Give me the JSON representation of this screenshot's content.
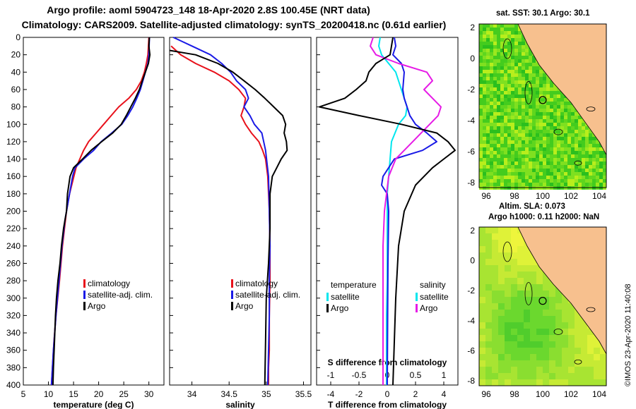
{
  "title": {
    "line1": "Argo profile: aoml 5904723_148 18-Apr-2020 2.8S 100.45E (NRT data)",
    "line2": "Climatology: CARS2009. Satellite-adjusted climatology: synTS_20200418.nc (0.61d earlier)"
  },
  "colors": {
    "climatology": "#e8111b",
    "satellite": "#1a1ae6",
    "argo": "#000000",
    "t_satellite": "#00e6ee",
    "s_satellite": "#1a1ae6",
    "argo_s": "#e61be6",
    "argo_t": "#000000",
    "land": "#f7c08e"
  },
  "chart_data": [
    {
      "type": "line",
      "id": "temperature",
      "xlabel": "temperature (deg C)",
      "ylabel": "",
      "xlim": [
        5,
        33
      ],
      "ylim": [
        400,
        0
      ],
      "xticks": [
        5,
        10,
        15,
        20,
        25,
        30
      ],
      "yticks": [
        0,
        20,
        40,
        60,
        80,
        100,
        120,
        140,
        160,
        180,
        200,
        220,
        240,
        260,
        280,
        300,
        320,
        340,
        360,
        380,
        400
      ],
      "legend": [
        "climatology",
        "satellite-adj. clim.",
        "Argo"
      ],
      "series": [
        {
          "name": "climatology",
          "color_key": "climatology",
          "x": [
            30.0,
            29.9,
            29.8,
            29.5,
            29.1,
            28.5,
            27.5,
            26.0,
            24.0,
            22.5,
            21.0,
            19.5,
            18.0,
            17.0,
            15.5,
            14.2,
            13.6,
            12.8,
            12.2,
            11.5,
            11.1,
            10.8,
            10.6
          ],
          "y": [
            0,
            10,
            20,
            30,
            40,
            50,
            60,
            70,
            80,
            90,
            100,
            110,
            120,
            130,
            150,
            180,
            200,
            240,
            280,
            320,
            350,
            380,
            400
          ]
        },
        {
          "name": "satellite-adj. clim.",
          "color_key": "satellite",
          "x": [
            30.1,
            30.0,
            29.8,
            29.3,
            28.8,
            28.3,
            27.6,
            26.8,
            25.8,
            24.6,
            22.6,
            20.5,
            19.0,
            17.0,
            15.3,
            14.8,
            14.2,
            13.3,
            12.7,
            12.1,
            11.5,
            11.0,
            10.7,
            10.6
          ],
          "y": [
            0,
            20,
            30,
            40,
            50,
            60,
            70,
            80,
            90,
            100,
            110,
            120,
            130,
            140,
            150,
            160,
            180,
            210,
            240,
            280,
            320,
            360,
            390,
            400
          ]
        },
        {
          "name": "Argo",
          "color_key": "argo",
          "x": [
            30.1,
            30.0,
            30.2,
            29.9,
            29.3,
            28.7,
            28.1,
            27.3,
            26.4,
            25.5,
            24.5,
            22.8,
            20.6,
            18.5,
            16.8,
            15.0,
            14.3,
            13.8,
            13.6,
            13.0,
            12.6,
            12.3,
            11.9,
            11.6,
            11.4,
            11.2,
            11.0,
            10.9
          ],
          "y": [
            0,
            10,
            20,
            30,
            40,
            50,
            60,
            70,
            80,
            90,
            100,
            110,
            120,
            130,
            140,
            150,
            160,
            180,
            200,
            220,
            240,
            260,
            280,
            300,
            320,
            350,
            380,
            400
          ]
        }
      ]
    },
    {
      "type": "line",
      "id": "salinity",
      "xlabel": "salinity",
      "xlim": [
        33.7,
        35.6
      ],
      "ylim": [
        400,
        0
      ],
      "xticks": [
        34,
        34.5,
        35,
        35.5
      ],
      "legend": [
        "climatology",
        "satellite-adj. clim.",
        "Argo"
      ],
      "series": [
        {
          "name": "climatology",
          "color_key": "climatology",
          "x": [
            33.72,
            33.85,
            34.05,
            34.3,
            34.5,
            34.63,
            34.72,
            34.7,
            34.66,
            34.72,
            34.8,
            34.9,
            34.95,
            34.99,
            35.02,
            35.04,
            35.05,
            35.05,
            35.04,
            35.04,
            35.03,
            35.03
          ],
          "y": [
            10,
            20,
            30,
            40,
            50,
            60,
            70,
            80,
            90,
            100,
            110,
            120,
            130,
            140,
            160,
            200,
            240,
            280,
            320,
            360,
            380,
            400
          ]
        },
        {
          "name": "satellite-adj. clim.",
          "color_key": "satellite",
          "x": [
            33.75,
            34.0,
            34.25,
            34.4,
            34.52,
            34.6,
            34.72,
            34.76,
            34.7,
            34.78,
            34.84,
            34.94,
            34.99,
            35.03,
            35.04,
            35.05,
            35.04,
            35.04,
            35.03,
            35.02
          ],
          "y": [
            0,
            10,
            20,
            30,
            40,
            50,
            60,
            70,
            80,
            90,
            100,
            110,
            130,
            160,
            200,
            240,
            280,
            320,
            360,
            400
          ]
        },
        {
          "name": "Argo",
          "color_key": "argo",
          "x": [
            33.7,
            34.05,
            34.35,
            34.55,
            34.7,
            34.85,
            34.98,
            35.1,
            35.22,
            35.26,
            35.24,
            35.27,
            35.28,
            35.2,
            35.14,
            35.08,
            35.05,
            35.05,
            35.03,
            35.0,
            34.99,
            34.98
          ],
          "y": [
            15,
            20,
            30,
            40,
            50,
            60,
            70,
            80,
            90,
            100,
            110,
            120,
            130,
            140,
            150,
            160,
            180,
            220,
            260,
            300,
            350,
            400
          ]
        }
      ]
    },
    {
      "type": "line",
      "id": "difference",
      "xlabel": "T difference from climatology",
      "xlabel_top": "S difference from climatology",
      "xlim": [
        -5,
        5
      ],
      "xlim_top": [
        -1.25,
        1.25
      ],
      "ylim": [
        400,
        0
      ],
      "xticks": [
        -4,
        -2,
        0,
        2,
        4
      ],
      "xticks_top": [
        -1,
        -0.5,
        0,
        0.5,
        1
      ],
      "legend_t": {
        "header": "temperature",
        "items": [
          "satellite",
          "Argo"
        ]
      },
      "legend_s": {
        "header": "salinity",
        "items": [
          "satellite",
          "Argo"
        ]
      },
      "series": [
        {
          "name": "T satellite",
          "color_key": "t_satellite",
          "x": [
            -0.5,
            -0.6,
            -0.4,
            0.1,
            0.6,
            1.0,
            1.2,
            1.4,
            1.3,
            0.8,
            0.3,
            0.2,
            0.1,
            0.0,
            0.0,
            0.0,
            0.0,
            -0.05,
            -0.05,
            -0.05
          ],
          "y": [
            0,
            10,
            20,
            30,
            40,
            60,
            70,
            80,
            90,
            100,
            120,
            140,
            160,
            180,
            200,
            240,
            280,
            320,
            360,
            400
          ]
        },
        {
          "name": "S satellite",
          "color_key": "s_satellite",
          "x": [
            0.5,
            0.6,
            0.4,
            1.0,
            1.2,
            1.1,
            1.2,
            1.4,
            1.6,
            2.0,
            2.8,
            3.5,
            2.5,
            0.5,
            -0.3,
            -0.4,
            0.0,
            0.1,
            0.05,
            0.0
          ],
          "y": [
            0,
            10,
            20,
            30,
            40,
            60,
            70,
            80,
            90,
            100,
            110,
            120,
            130,
            140,
            160,
            170,
            180,
            200,
            260,
            400
          ]
        },
        {
          "name": "S Argo",
          "color_key": "argo_s",
          "x": [
            -1.0,
            -1.2,
            -0.8,
            0.8,
            2.8,
            3.2,
            2.6,
            3.2,
            3.8,
            3.6,
            3.0,
            2.4,
            1.8,
            1.2,
            0.6,
            0.1,
            -0.2,
            -0.3,
            -0.3,
            -0.3,
            -0.3
          ],
          "y": [
            0,
            10,
            20,
            30,
            40,
            50,
            60,
            70,
            80,
            90,
            100,
            110,
            120,
            130,
            140,
            160,
            200,
            240,
            300,
            350,
            400
          ]
        },
        {
          "name": "T Argo",
          "color_key": "argo_t",
          "x": [
            0.4,
            0.3,
            0.2,
            -0.8,
            -1.3,
            -1.5,
            -2.2,
            -3.0,
            -4.8,
            -2.0,
            1.0,
            3.5,
            4.3,
            4.8,
            4.0,
            3.2,
            2.0,
            1.2,
            0.8,
            0.6,
            0.5,
            0.4
          ],
          "y": [
            0,
            10,
            20,
            30,
            40,
            50,
            60,
            70,
            80,
            90,
            100,
            110,
            120,
            130,
            140,
            150,
            170,
            200,
            240,
            300,
            350,
            400
          ]
        }
      ]
    }
  ],
  "maps": {
    "top": {
      "label": "sat. SST: 30.1 Argo: 30.1",
      "xticks": [
        "96",
        "98",
        "100",
        "102",
        "104"
      ],
      "yticks": [
        "2",
        "0",
        "-2",
        "-4",
        "-6",
        "-8"
      ]
    },
    "bottom": {
      "label_line1": "Altim. SLA: 0.073",
      "label_line2": "Argo h1000: 0.11 h2000: NaN",
      "xticks": [
        "96",
        "98",
        "100",
        "102",
        "104"
      ],
      "yticks": [
        "2",
        "0",
        "-2",
        "-4",
        "-6",
        "-8"
      ]
    }
  },
  "credit": "©IMOS 23-Apr-2020 11:40:08"
}
